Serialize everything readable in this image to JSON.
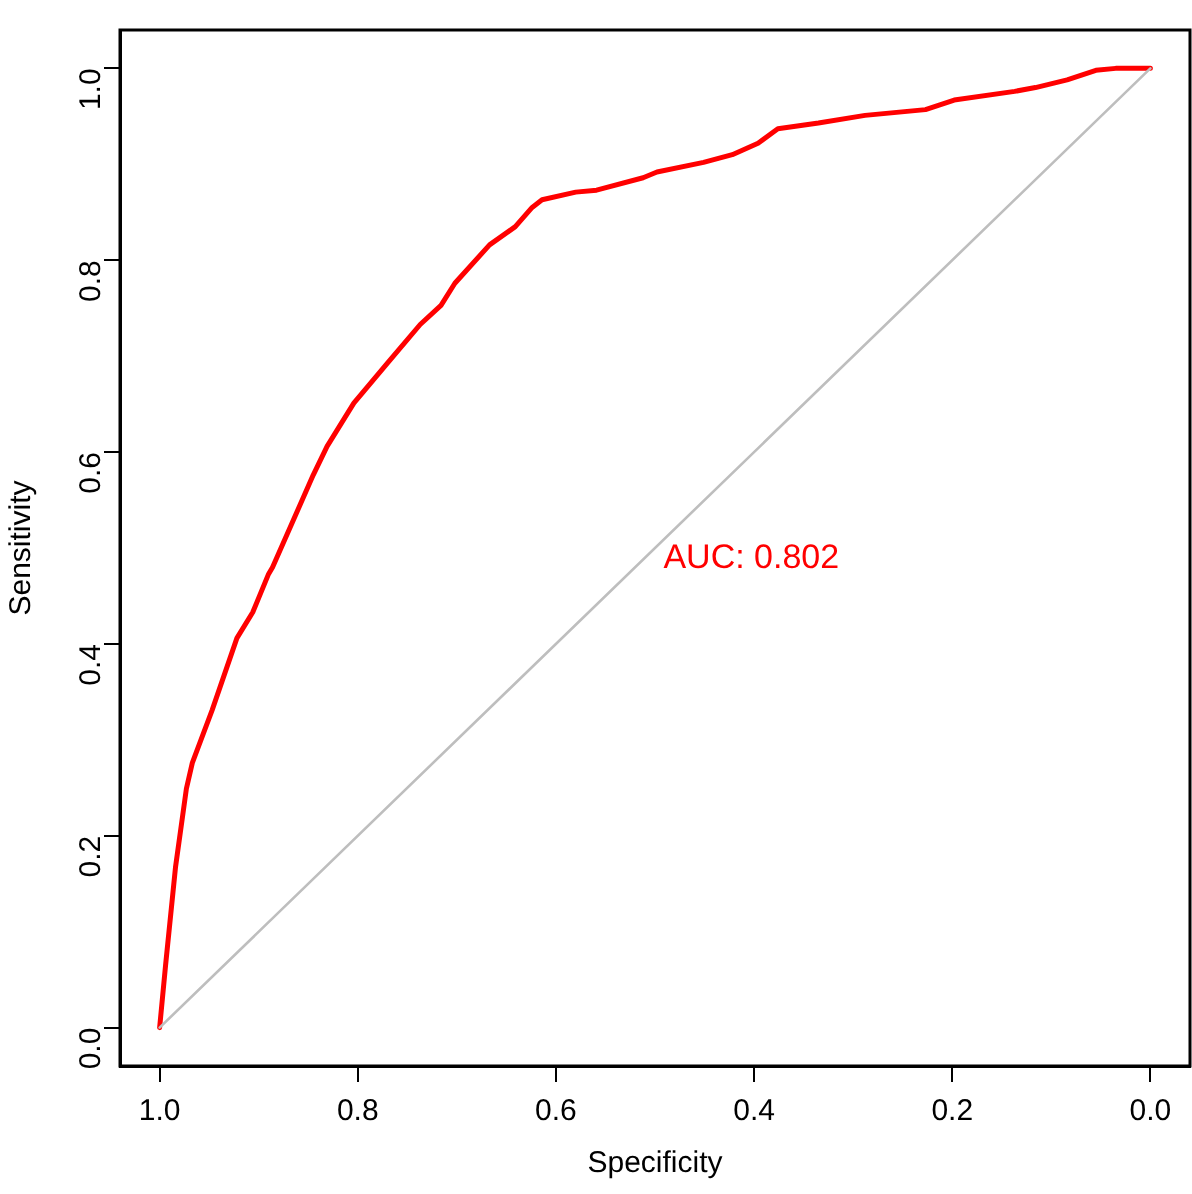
{
  "chart_data": {
    "type": "line",
    "xlabel": "Specificity",
    "ylabel": "Sensitivity",
    "xlim": [
      1.04,
      -0.04
    ],
    "ylim": [
      -0.04,
      1.04
    ],
    "xticks": [
      {
        "value": 1,
        "label": "1.0"
      },
      {
        "value": 0.8,
        "label": "0.8"
      },
      {
        "value": 0.6,
        "label": "0.6"
      },
      {
        "value": 0.4,
        "label": "0.4"
      },
      {
        "value": 0.2,
        "label": "0.2"
      },
      {
        "value": 0,
        "label": "0.0"
      }
    ],
    "yticks": [
      {
        "value": 0,
        "label": "0.0"
      },
      {
        "value": 0.2,
        "label": "0.2"
      },
      {
        "value": 0.4,
        "label": "0.4"
      },
      {
        "value": 0.6,
        "label": "0.6"
      },
      {
        "value": 0.8,
        "label": "0.8"
      },
      {
        "value": 1,
        "label": "1.0"
      }
    ],
    "grid": false,
    "legend": false,
    "marker": "none",
    "line_style": "solid",
    "annotations": [
      "AUC: 0.802"
    ],
    "series": [
      {
        "color": "#bebebe",
        "x": [
          1,
          0
        ],
        "values": [
          0,
          1
        ]
      },
      {
        "color": "#ff0000",
        "x": [
          1.0,
          0.994,
          0.984,
          0.973,
          0.967,
          0.947,
          0.922,
          0.906,
          0.89,
          0.886,
          0.845,
          0.831,
          0.804,
          0.769,
          0.737,
          0.716,
          0.702,
          0.667,
          0.641,
          0.624,
          0.614,
          0.58,
          0.559,
          0.512,
          0.498,
          0.451,
          0.422,
          0.396,
          0.376,
          0.335,
          0.288,
          0.227,
          0.198,
          0.137,
          0.116,
          0.084,
          0.055,
          0.035,
          0.0
        ],
        "values": [
          0,
          0.065,
          0.167,
          0.249,
          0.276,
          0.331,
          0.406,
          0.433,
          0.473,
          0.48,
          0.576,
          0.606,
          0.651,
          0.694,
          0.733,
          0.753,
          0.776,
          0.816,
          0.835,
          0.855,
          0.863,
          0.871,
          0.873,
          0.886,
          0.892,
          0.902,
          0.91,
          0.922,
          0.937,
          0.943,
          0.951,
          0.957,
          0.967,
          0.976,
          0.98,
          0.988,
          0.998,
          1.0,
          1.0
        ]
      }
    ]
  }
}
